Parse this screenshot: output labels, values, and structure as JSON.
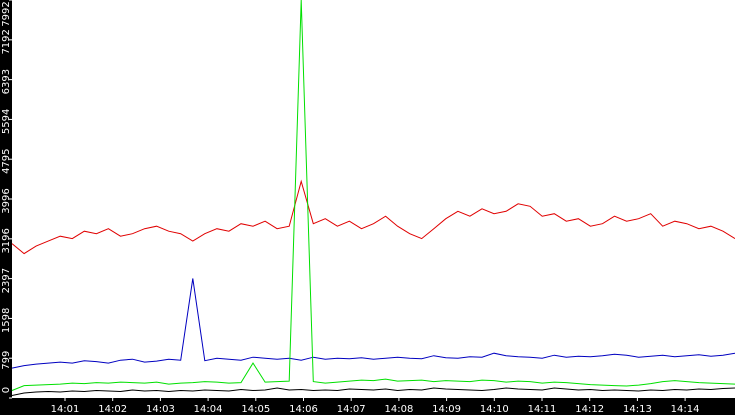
{
  "chart_data": {
    "type": "line",
    "x_labels": [
      "14:01",
      "14:02",
      "14:03",
      "14:04",
      "14:05",
      "14:06",
      "14:07",
      "14:08",
      "14:09",
      "14:10",
      "14:11",
      "14:12",
      "14:13",
      "14:14"
    ],
    "ylim": [
      0,
      7992
    ],
    "yticks": [
      0,
      799,
      1598,
      2397,
      3196,
      3996,
      4795,
      5594,
      6393,
      7192,
      7992
    ],
    "series": [
      {
        "color": "#e00000",
        "values": [
          3100,
          2900,
          3050,
          3150,
          3250,
          3200,
          3350,
          3300,
          3400,
          3250,
          3300,
          3400,
          3450,
          3350,
          3300,
          3150,
          3300,
          3400,
          3350,
          3500,
          3450,
          3550,
          3400,
          3450,
          4350,
          3500,
          3600,
          3450,
          3550,
          3400,
          3500,
          3650,
          3450,
          3300,
          3200,
          3400,
          3600,
          3750,
          3650,
          3800,
          3700,
          3750,
          3900,
          3850,
          3650,
          3700,
          3550,
          3600,
          3450,
          3500,
          3650,
          3550,
          3600,
          3700,
          3450,
          3550,
          3500,
          3400,
          3450,
          3350,
          3200
        ]
      },
      {
        "color": "#0000c0",
        "values": [
          600,
          650,
          680,
          700,
          720,
          700,
          750,
          730,
          700,
          760,
          780,
          720,
          740,
          780,
          760,
          2400,
          750,
          800,
          780,
          760,
          820,
          800,
          780,
          800,
          760,
          820,
          780,
          800,
          790,
          810,
          780,
          800,
          820,
          800,
          790,
          850,
          810,
          800,
          830,
          820,
          900,
          850,
          830,
          820,
          800,
          860,
          820,
          840,
          830,
          850,
          880,
          860,
          820,
          840,
          860,
          830,
          850,
          870,
          840,
          860,
          900
        ]
      },
      {
        "color": "#00e000",
        "values": [
          150,
          250,
          260,
          270,
          280,
          300,
          290,
          310,
          300,
          320,
          310,
          300,
          320,
          280,
          300,
          310,
          330,
          320,
          300,
          310,
          700,
          320,
          330,
          340,
          7992,
          330,
          300,
          320,
          340,
          360,
          350,
          380,
          340,
          350,
          360,
          330,
          350,
          340,
          330,
          360,
          350,
          320,
          340,
          330,
          300,
          320,
          310,
          290,
          270,
          260,
          250,
          240,
          260,
          290,
          330,
          350,
          330,
          310,
          300,
          290,
          280
        ]
      },
      {
        "color": "#000000",
        "values": [
          50,
          100,
          120,
          130,
          120,
          140,
          130,
          150,
          140,
          130,
          160,
          140,
          150,
          130,
          150,
          140,
          160,
          150,
          140,
          170,
          150,
          160,
          200,
          160,
          170,
          150,
          160,
          150,
          180,
          170,
          160,
          180,
          150,
          170,
          160,
          200,
          180,
          170,
          160,
          150,
          170,
          200,
          180,
          170,
          160,
          200,
          180,
          160,
          170,
          150,
          160,
          150,
          140,
          160,
          150,
          170,
          160,
          180,
          170,
          190,
          200
        ]
      }
    ]
  }
}
